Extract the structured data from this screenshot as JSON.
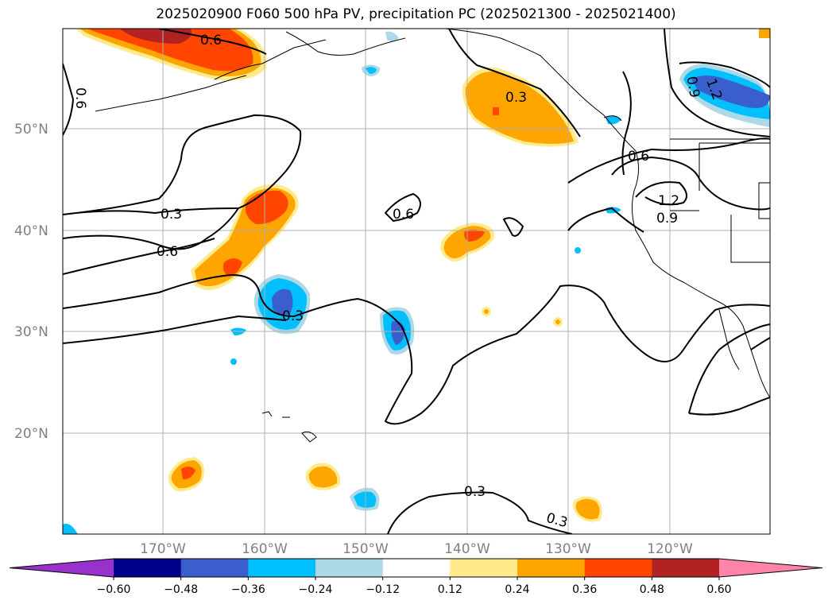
{
  "title": "2025020900 F060 500 hPa PV, precipitation PC (2025021300 - 2025021400)",
  "map": {
    "lat_labels": [
      "50°N",
      "40°N",
      "30°N",
      "20°N"
    ],
    "lon_labels": [
      "170°W",
      "160°W",
      "150°W",
      "140°W",
      "130°W",
      "120°W"
    ],
    "contour_labels": [
      "0.6",
      "0.6",
      "0.3",
      "0.6",
      "0.3",
      "0.6",
      "0.3",
      "0.6",
      "1.2",
      "0.9",
      "0.9",
      "1.2",
      "0.3",
      "0.3"
    ]
  },
  "colorbar": {
    "ticks": [
      "−0.60",
      "−0.48",
      "−0.36",
      "−0.24",
      "−0.12",
      "0.12",
      "0.24",
      "0.36",
      "0.48",
      "0.60"
    ],
    "colors": [
      "#9932cc",
      "#00008b",
      "#3a5fcd",
      "#00bfff",
      "#add8e6",
      "#ffffff",
      "#ffeb8c",
      "#ffa500",
      "#ff4500",
      "#b22222",
      "#ff85a8"
    ]
  }
}
